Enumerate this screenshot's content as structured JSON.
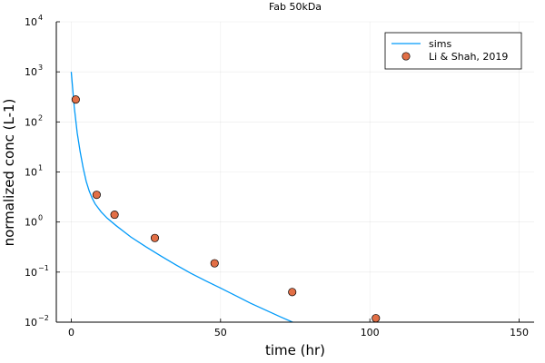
{
  "chart_data": {
    "type": "scatter",
    "title": "Fab 50kDa",
    "xlabel": "time (hr)",
    "ylabel": "normalized conc (L-1)",
    "xlim": [
      -5,
      155
    ],
    "ylim": [
      0.01,
      10000
    ],
    "yscale": "log",
    "grid": true,
    "legend_position": "top-right",
    "xticks": [
      {
        "value": 0,
        "label": "0"
      },
      {
        "value": 50,
        "label": "50"
      },
      {
        "value": 100,
        "label": "100"
      },
      {
        "value": 150,
        "label": "150"
      }
    ],
    "yticks": [
      {
        "value": 0.01,
        "base": "10",
        "exp": "−2"
      },
      {
        "value": 0.1,
        "base": "10",
        "exp": "−1"
      },
      {
        "value": 1,
        "base": "10",
        "exp": "0"
      },
      {
        "value": 10,
        "base": "10",
        "exp": "1"
      },
      {
        "value": 100,
        "base": "10",
        "exp": "2"
      },
      {
        "value": 1000,
        "base": "10",
        "exp": "3"
      },
      {
        "value": 10000,
        "base": "10",
        "exp": "4"
      }
    ],
    "series": [
      {
        "name": "sims",
        "kind": "line",
        "color": "#009af9",
        "x": [
          0,
          1,
          2,
          3,
          4,
          5,
          6,
          7,
          8,
          10,
          12,
          15,
          20,
          25,
          30,
          35,
          40,
          45,
          50,
          55,
          60,
          65,
          70,
          75
        ],
        "y": [
          1000,
          200,
          60,
          25,
          12,
          6.5,
          4.2,
          3.0,
          2.3,
          1.6,
          1.2,
          0.85,
          0.5,
          0.32,
          0.21,
          0.14,
          0.095,
          0.067,
          0.048,
          0.034,
          0.024,
          0.0175,
          0.0128,
          0.0095
        ]
      },
      {
        "name": "Li & Shah, 2019",
        "kind": "scatter",
        "color": "#e26f46",
        "x": [
          1.5,
          8.5,
          14.5,
          28,
          48,
          74,
          102
        ],
        "y": [
          280,
          3.5,
          1.4,
          0.48,
          0.15,
          0.04,
          0.012
        ]
      }
    ]
  }
}
